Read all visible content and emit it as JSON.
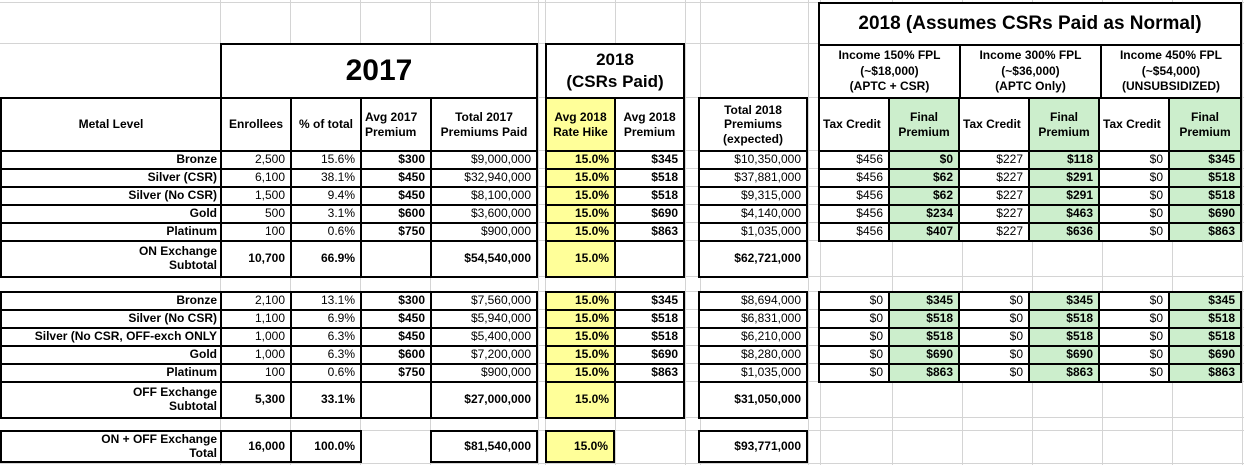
{
  "headers": {
    "year_2017": "2017",
    "csr_paid_2018": "2018\n(CSRs Paid)",
    "assumes_title": "2018 (Assumes CSRs Paid as Normal)",
    "income_groups": [
      "Income 150% FPL\n(~$18,000)\n(APTC + CSR)",
      "Income 300% FPL\n(~$36,000)\n(APTC Only)",
      "Income 450% FPL\n(~$54,000)\n(UNSUBSIDIZED)"
    ],
    "columns": {
      "metal_level": "Metal Level",
      "enrollees": "Enrollees",
      "pct_of_total": "% of total",
      "avg_2017_premium": "Avg 2017 Premium",
      "total_2017_premiums": "Total 2017 Premiums Paid",
      "avg_2018_rate_hike": "Avg 2018 Rate Hike",
      "avg_2018_premium": "Avg 2018 Premium",
      "total_2018_premiums": "Total 2018 Premiums (expected)",
      "tax_credit": "Tax Credit",
      "final_premium": "Final Premium"
    }
  },
  "on_exchange": {
    "rows": [
      {
        "label": "Bronze",
        "enrollees": "2,500",
        "pct": "15.6%",
        "avg_2017": "$300",
        "total_2017": "$9,000,000",
        "hike": "15.0%",
        "avg_2018": "$345",
        "total_2018": "$10,350,000",
        "tc_150": "$456",
        "fp_150": "$0",
        "tc_300": "$227",
        "fp_300": "$118",
        "tc_450": "$0",
        "fp_450": "$345"
      },
      {
        "label": "Silver (CSR)",
        "enrollees": "6,100",
        "pct": "38.1%",
        "avg_2017": "$450",
        "total_2017": "$32,940,000",
        "hike": "15.0%",
        "avg_2018": "$518",
        "total_2018": "$37,881,000",
        "tc_150": "$456",
        "fp_150": "$62",
        "tc_300": "$227",
        "fp_300": "$291",
        "tc_450": "$0",
        "fp_450": "$518"
      },
      {
        "label": "Silver (No CSR)",
        "enrollees": "1,500",
        "pct": "9.4%",
        "avg_2017": "$450",
        "total_2017": "$8,100,000",
        "hike": "15.0%",
        "avg_2018": "$518",
        "total_2018": "$9,315,000",
        "tc_150": "$456",
        "fp_150": "$62",
        "tc_300": "$227",
        "fp_300": "$291",
        "tc_450": "$0",
        "fp_450": "$518"
      },
      {
        "label": "Gold",
        "enrollees": "500",
        "pct": "3.1%",
        "avg_2017": "$600",
        "total_2017": "$3,600,000",
        "hike": "15.0%",
        "avg_2018": "$690",
        "total_2018": "$4,140,000",
        "tc_150": "$456",
        "fp_150": "$234",
        "tc_300": "$227",
        "fp_300": "$463",
        "tc_450": "$0",
        "fp_450": "$690"
      },
      {
        "label": "Platinum",
        "enrollees": "100",
        "pct": "0.6%",
        "avg_2017": "$750",
        "total_2017": "$900,000",
        "hike": "15.0%",
        "avg_2018": "$863",
        "total_2018": "$1,035,000",
        "tc_150": "$456",
        "fp_150": "$407",
        "tc_300": "$227",
        "fp_300": "$636",
        "tc_450": "$0",
        "fp_450": "$863"
      }
    ],
    "subtotal": {
      "label": "ON Exchange\nSubtotal",
      "enrollees": "10,700",
      "pct": "66.9%",
      "total_2017": "$54,540,000",
      "hike": "15.0%",
      "total_2018": "$62,721,000"
    }
  },
  "off_exchange": {
    "rows": [
      {
        "label": "Bronze",
        "enrollees": "2,100",
        "pct": "13.1%",
        "avg_2017": "$300",
        "total_2017": "$7,560,000",
        "hike": "15.0%",
        "avg_2018": "$345",
        "total_2018": "$8,694,000",
        "tc_150": "$0",
        "fp_150": "$345",
        "tc_300": "$0",
        "fp_300": "$345",
        "tc_450": "$0",
        "fp_450": "$345"
      },
      {
        "label": "Silver (No CSR)",
        "enrollees": "1,100",
        "pct": "6.9%",
        "avg_2017": "$450",
        "total_2017": "$5,940,000",
        "hike": "15.0%",
        "avg_2018": "$518",
        "total_2018": "$6,831,000",
        "tc_150": "$0",
        "fp_150": "$518",
        "tc_300": "$0",
        "fp_300": "$518",
        "tc_450": "$0",
        "fp_450": "$518"
      },
      {
        "label": "Silver (No CSR, OFF-exch ONLY",
        "enrollees": "1,000",
        "pct": "6.3%",
        "avg_2017": "$450",
        "total_2017": "$5,400,000",
        "hike": "15.0%",
        "avg_2018": "$518",
        "total_2018": "$6,210,000",
        "tc_150": "$0",
        "fp_150": "$518",
        "tc_300": "$0",
        "fp_300": "$518",
        "tc_450": "$0",
        "fp_450": "$518"
      },
      {
        "label": "Gold",
        "enrollees": "1,000",
        "pct": "6.3%",
        "avg_2017": "$600",
        "total_2017": "$7,200,000",
        "hike": "15.0%",
        "avg_2018": "$690",
        "total_2018": "$8,280,000",
        "tc_150": "$0",
        "fp_150": "$690",
        "tc_300": "$0",
        "fp_300": "$690",
        "tc_450": "$0",
        "fp_450": "$690"
      },
      {
        "label": "Platinum",
        "enrollees": "100",
        "pct": "0.6%",
        "avg_2017": "$750",
        "total_2017": "$900,000",
        "hike": "15.0%",
        "avg_2018": "$863",
        "total_2018": "$1,035,000",
        "tc_150": "$0",
        "fp_150": "$863",
        "tc_300": "$0",
        "fp_300": "$863",
        "tc_450": "$0",
        "fp_450": "$863"
      }
    ],
    "subtotal": {
      "label": "OFF Exchange\nSubtotal",
      "enrollees": "5,300",
      "pct": "33.1%",
      "total_2017": "$27,000,000",
      "hike": "15.0%",
      "total_2018": "$31,050,000"
    }
  },
  "grand_total": {
    "label": "ON + OFF Exchange\nTotal",
    "enrollees": "16,000",
    "pct": "100.0%",
    "total_2017": "$81,540,000",
    "hike": "15.0%",
    "total_2018": "$93,771,000"
  },
  "colors": {
    "rate_hike_yellow": "#FFFF99",
    "final_premium_green": "#CCEECC",
    "gridline_gray": "#D4D4D4",
    "border_black": "#000000"
  }
}
